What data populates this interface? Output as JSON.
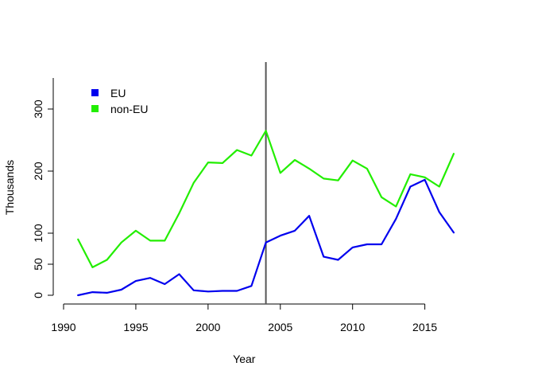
{
  "chart_data": {
    "type": "line",
    "xlabel": "Year",
    "ylabel": "Thousands",
    "xlim": [
      1990,
      2017
    ],
    "ylim": [
      0,
      350
    ],
    "x_ticks": [
      1990,
      1995,
      2000,
      2005,
      2010,
      2015
    ],
    "y_ticks": [
      0,
      50,
      100,
      200,
      300
    ],
    "legend_position": "top-left",
    "vertical_marker_x": 2004,
    "x": [
      1991,
      1992,
      1993,
      1994,
      1995,
      1996,
      1997,
      1998,
      1999,
      2000,
      2001,
      2002,
      2003,
      2004,
      2005,
      2006,
      2007,
      2008,
      2009,
      2010,
      2011,
      2012,
      2013,
      2014,
      2015,
      2016,
      2017
    ],
    "series": [
      {
        "name": "EU",
        "color": "#0000ee",
        "values": [
          0,
          5,
          4,
          9,
          23,
          28,
          18,
          34,
          8,
          6,
          7,
          7,
          15,
          85,
          96,
          104,
          128,
          62,
          57,
          77,
          82,
          82,
          123,
          175,
          186,
          134,
          101
        ]
      },
      {
        "name": "non-EU",
        "color": "#22ee00",
        "values": [
          90,
          45,
          57,
          85,
          104,
          88,
          88,
          132,
          181,
          214,
          213,
          234,
          225,
          265,
          197,
          218,
          204,
          188,
          185,
          217,
          204,
          158,
          143,
          195,
          190,
          175,
          228
        ]
      }
    ]
  }
}
